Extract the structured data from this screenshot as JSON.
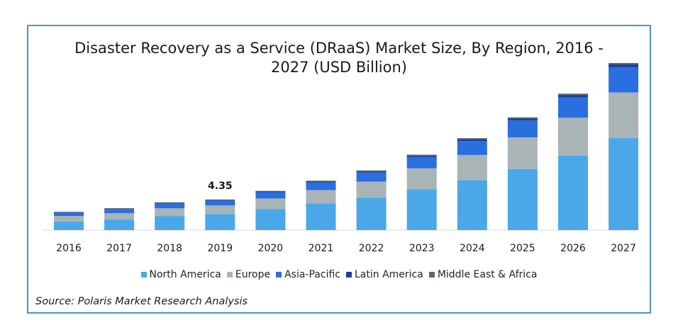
{
  "chart_data": {
    "type": "bar",
    "stacked": true,
    "title_lines": [
      "Disaster Recovery as a Service (DRaaS) Market Size, By Region, 2016 -",
      "2027 (USD Billion)"
    ],
    "categories": [
      "2016",
      "2017",
      "2018",
      "2019",
      "2020",
      "2021",
      "2022",
      "2023",
      "2024",
      "2025",
      "2026",
      "2027"
    ],
    "series": [
      {
        "name": "North America",
        "color": "#4aa8e8",
        "values": [
          1.2,
          1.5,
          2.0,
          2.3,
          3.0,
          3.8,
          4.6,
          5.8,
          7.1,
          8.7,
          10.6,
          13.1
        ]
      },
      {
        "name": "Europe",
        "color": "#a9b4b6",
        "values": [
          0.8,
          0.9,
          1.1,
          1.2,
          1.5,
          1.9,
          2.3,
          3.0,
          3.6,
          4.5,
          5.4,
          6.5
        ]
      },
      {
        "name": "Asia-Pacific",
        "color": "#2a6fe0",
        "values": [
          0.5,
          0.6,
          0.7,
          0.7,
          0.9,
          1.1,
          1.3,
          1.6,
          2.0,
          2.4,
          2.9,
          3.6
        ]
      },
      {
        "name": "Latin America",
        "color": "#1a3f9e",
        "values": [
          0.07,
          0.08,
          0.1,
          0.1,
          0.12,
          0.15,
          0.2,
          0.22,
          0.25,
          0.3,
          0.35,
          0.4
        ]
      },
      {
        "name": "Middle East & Africa",
        "color": "#586a6a",
        "values": [
          0.03,
          0.04,
          0.05,
          0.05,
          0.06,
          0.08,
          0.1,
          0.12,
          0.14,
          0.16,
          0.18,
          0.2
        ]
      }
    ],
    "annotations": [
      {
        "category": "2019",
        "text": "4.35"
      }
    ],
    "ylim": [
      0,
      24
    ],
    "legend_position": "bottom",
    "grid": false
  },
  "source_text": "Source: Polaris Market Research Analysis"
}
